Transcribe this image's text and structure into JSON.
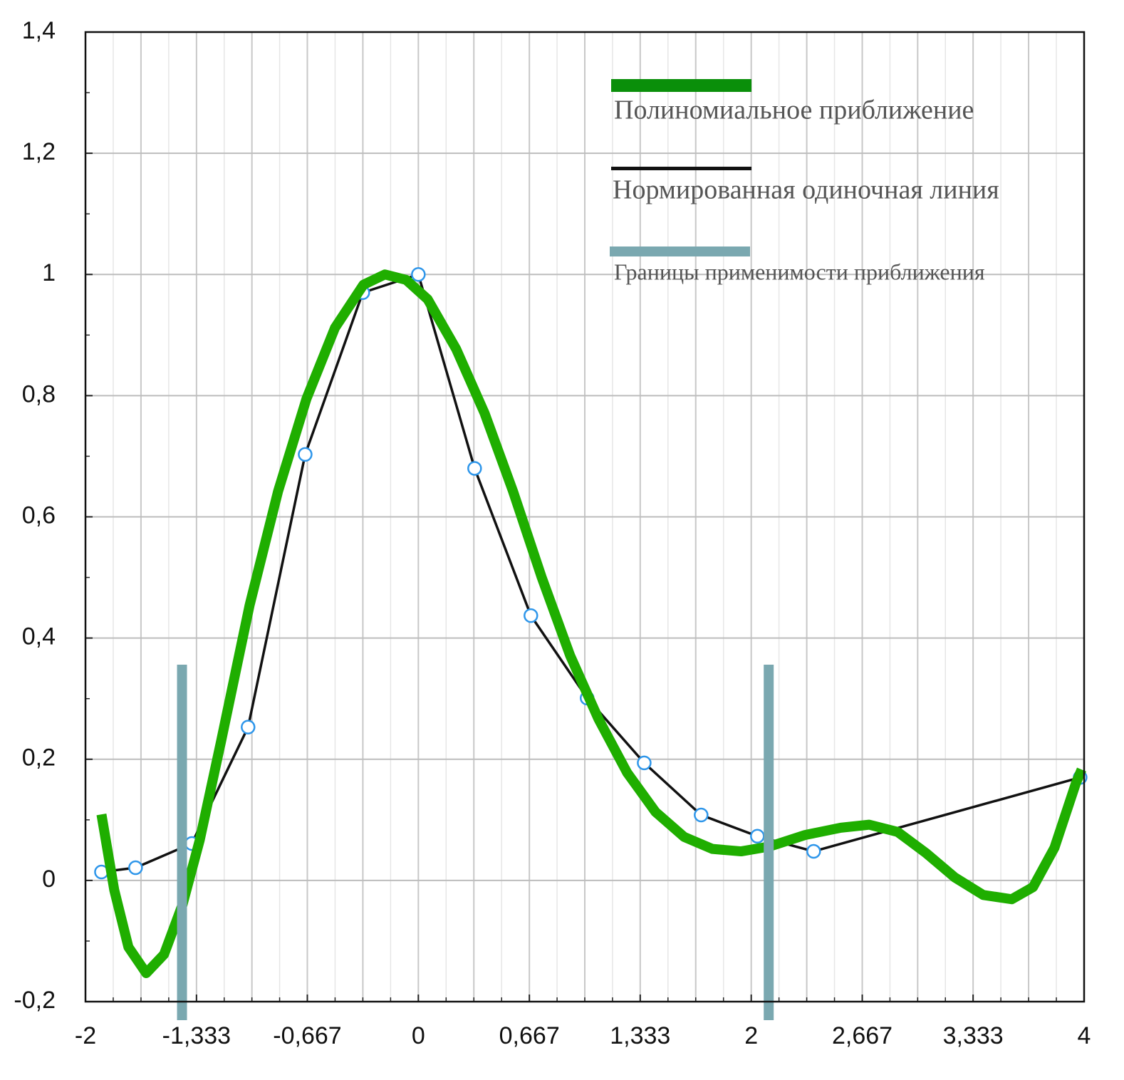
{
  "chart_data": {
    "type": "line",
    "xlim": [
      -2,
      4
    ],
    "ylim": [
      -0.2,
      1.4
    ],
    "xticks": [
      -2,
      {
        "value": -1.333,
        "label": "-1,333"
      },
      {
        "value": -0.667,
        "label": "-0,667"
      },
      0,
      {
        "value": 0.667,
        "label": "0,667"
      },
      {
        "value": 1.333,
        "label": "1,333"
      },
      2,
      {
        "value": 2.667,
        "label": "2,667"
      },
      {
        "value": 3.333,
        "label": "3,333"
      },
      4
    ],
    "yticks": [
      {
        "value": -0.2,
        "label": "-0,2"
      },
      0,
      {
        "value": 0.2,
        "label": "0,2"
      },
      {
        "value": 0.4,
        "label": "0,4"
      },
      {
        "value": 0.6,
        "label": "0,6"
      },
      {
        "value": 0.8,
        "label": "0,8"
      },
      1,
      {
        "value": 1.2,
        "label": "1,2"
      },
      {
        "value": 1.4,
        "label": "1,4"
      }
    ],
    "grid": true,
    "series": [
      {
        "name": "Полиномиальное приближение",
        "color": "#1fae00",
        "x": [
          -1.904,
          -1.827,
          -1.742,
          -1.635,
          -1.528,
          -1.417,
          -1.314,
          -1.185,
          -1.014,
          -0.843,
          -0.672,
          -0.501,
          -0.33,
          -0.201,
          -0.073,
          0.056,
          0.227,
          0.398,
          0.569,
          0.74,
          0.912,
          1.083,
          1.254,
          1.425,
          1.596,
          1.767,
          1.939,
          2.11,
          2.324,
          2.538,
          2.709,
          2.88,
          3.051,
          3.223,
          3.394,
          3.565,
          3.693,
          3.822,
          3.95,
          3.985
        ],
        "values": [
          0.109,
          -0.016,
          -0.11,
          -0.153,
          -0.122,
          -0.04,
          0.066,
          0.23,
          0.454,
          0.642,
          0.795,
          0.912,
          0.983,
          1.0,
          0.991,
          0.959,
          0.877,
          0.771,
          0.642,
          0.501,
          0.371,
          0.266,
          0.178,
          0.113,
          0.072,
          0.052,
          0.048,
          0.056,
          0.075,
          0.087,
          0.092,
          0.08,
          0.045,
          0.005,
          -0.024,
          -0.031,
          -0.011,
          0.054,
          0.16,
          0.183
        ]
      },
      {
        "name": "Нормированная одиночная линия",
        "color": "#111111",
        "x": [
          -1.904,
          -1.699,
          -1.361,
          -1.023,
          -0.68,
          -0.334,
          0,
          0.338,
          0.676,
          1.014,
          1.357,
          1.699,
          2.037,
          2.375,
          3.976
        ],
        "values": [
          0.014,
          0.021,
          0.061,
          0.253,
          0.703,
          0.97,
          1.0,
          0.68,
          0.437,
          0.301,
          0.194,
          0.108,
          0.073,
          0.048,
          0.17
        ]
      },
      {
        "name": "Границы применимости приближения",
        "color": "#7aa8b0",
        "x": [
          -1.42,
          2.105
        ]
      }
    ]
  }
}
